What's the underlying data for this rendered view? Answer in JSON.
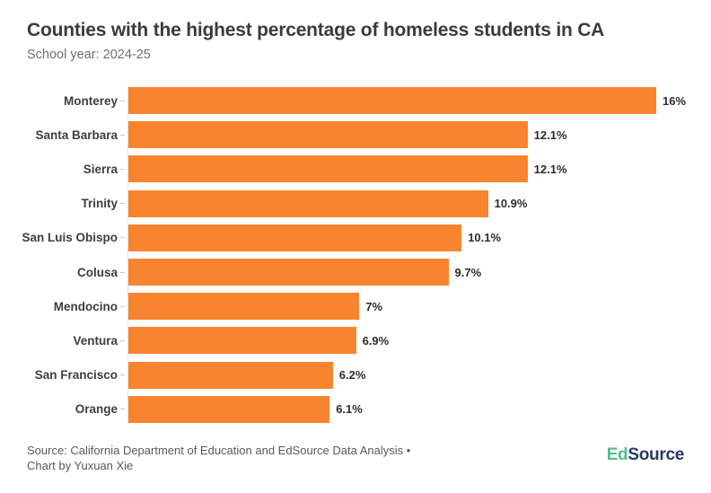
{
  "title": "Counties with the highest percentage of homeless students in CA",
  "subtitle": "School year: 2024-25",
  "chart_data": {
    "type": "bar",
    "orientation": "horizontal",
    "title": "Counties with the highest percentage of homeless students in CA",
    "subtitle": "School year: 2024-25",
    "categories": [
      "Monterey",
      "Santa Barbara",
      "Sierra",
      "Trinity",
      "San Luis Obispo",
      "Colusa",
      "Mendocino",
      "Ventura",
      "San Francisco",
      "Orange"
    ],
    "values": [
      16,
      12.1,
      12.1,
      10.9,
      10.1,
      9.7,
      7,
      6.9,
      6.2,
      6.1
    ],
    "value_labels": [
      "16%",
      "12.1%",
      "12.1%",
      "10.9%",
      "10.1%",
      "9.7%",
      "7%",
      "6.9%",
      "6.2%",
      "6.1%"
    ],
    "xlabel": "",
    "ylabel": "",
    "xlim": [
      0,
      16
    ],
    "grid": false,
    "legend": "none",
    "bar_color": "#f9842f"
  },
  "footer": {
    "line1": "Source: California Department of Education and EdSource Data Analysis •",
    "line2": "Chart by Yuxuan Xie"
  },
  "logo": {
    "part1": "Ed",
    "part2": "Source",
    "green": "#50be8b",
    "navy": "#273a66"
  },
  "colors": {
    "bar": "#f9842f",
    "title_text": "#3b3b3b",
    "subtitle_text": "#6f6f6f",
    "axis_line": "#e2e2e2",
    "background": "#ffffff"
  }
}
